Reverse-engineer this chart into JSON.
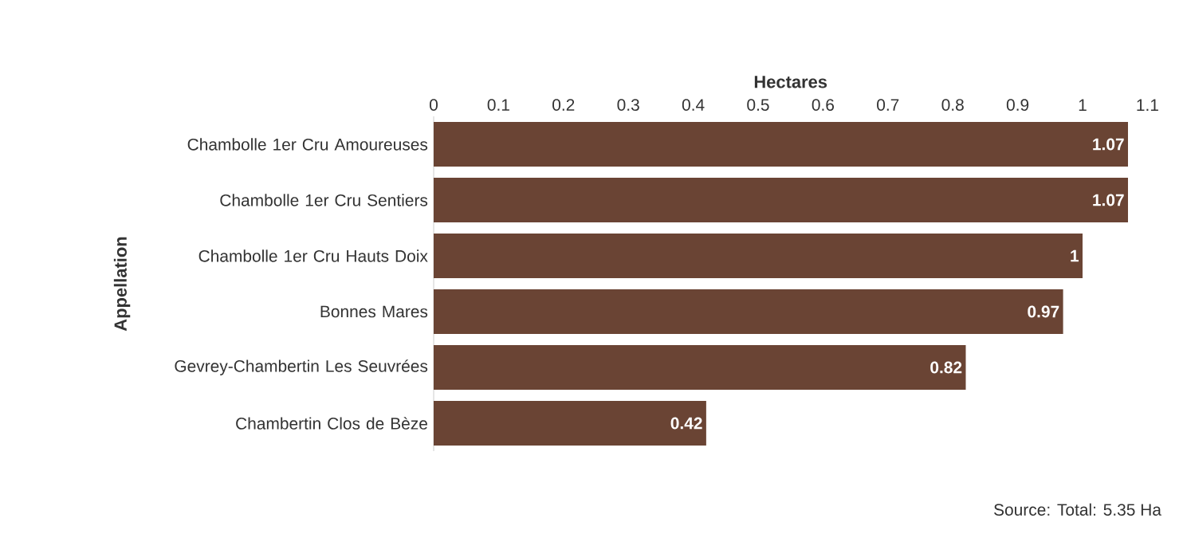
{
  "chart_data": {
    "type": "bar",
    "orientation": "horizontal",
    "xlabel": "Hectares",
    "ylabel": "Appellation",
    "categories": [
      "Chambolle 1er Cru Amoureuses",
      "Chambolle 1er Cru Sentiers",
      "Chambolle 1er Cru Hauts Doix",
      "Bonnes Mares",
      "Gevrey-Chambertin Les Seuvrées",
      "Chambertin Clos de Bèze"
    ],
    "values": [
      1.07,
      1.07,
      1,
      0.97,
      0.82,
      0.42
    ],
    "color": "#6a4434",
    "xlim": [
      0,
      1.1
    ],
    "xticks": [
      0,
      0.1,
      0.2,
      0.3,
      0.4,
      0.5,
      0.6,
      0.7,
      0.8,
      0.9,
      1,
      1.1
    ],
    "data_labels": true,
    "annotations": [
      "Source: Total: 5.35 Ha"
    ]
  }
}
